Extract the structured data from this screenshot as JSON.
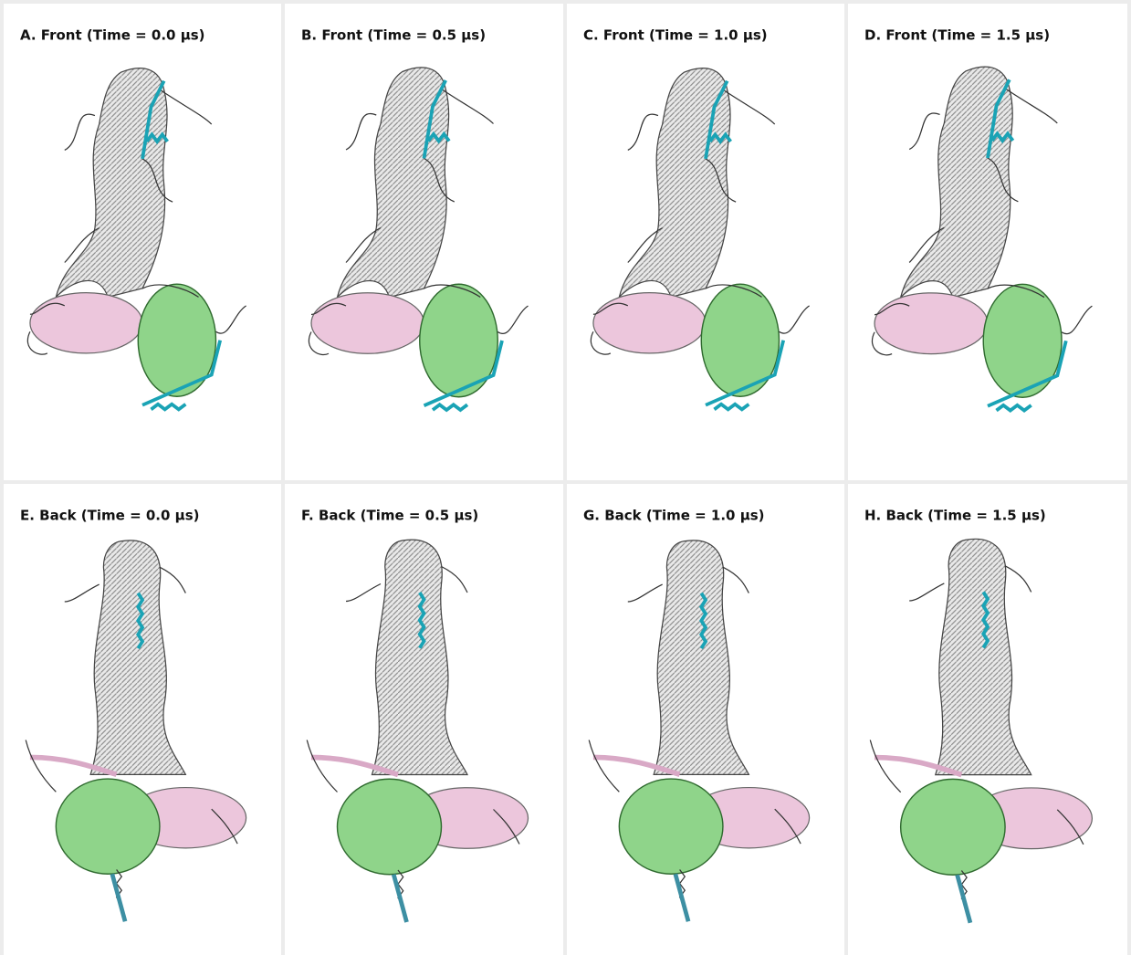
{
  "panels": [
    {
      "title": "A. Front (Time = 0.0 μs)"
    },
    {
      "title": "B. Front (Time = 0.5 μs)"
    },
    {
      "title": "C. Front (Time = 1.0 μs)"
    },
    {
      "title": "D. Front (Time = 1.5 μs)"
    },
    {
      "title": "E. Back (Time = 0.0 μs)"
    },
    {
      "title": "F. Back (Time = 0.5 μs)"
    },
    {
      "title": "G. Back (Time = 1.0 μs)"
    },
    {
      "title": "H. Back (Time = 1.5 μs)"
    }
  ]
}
